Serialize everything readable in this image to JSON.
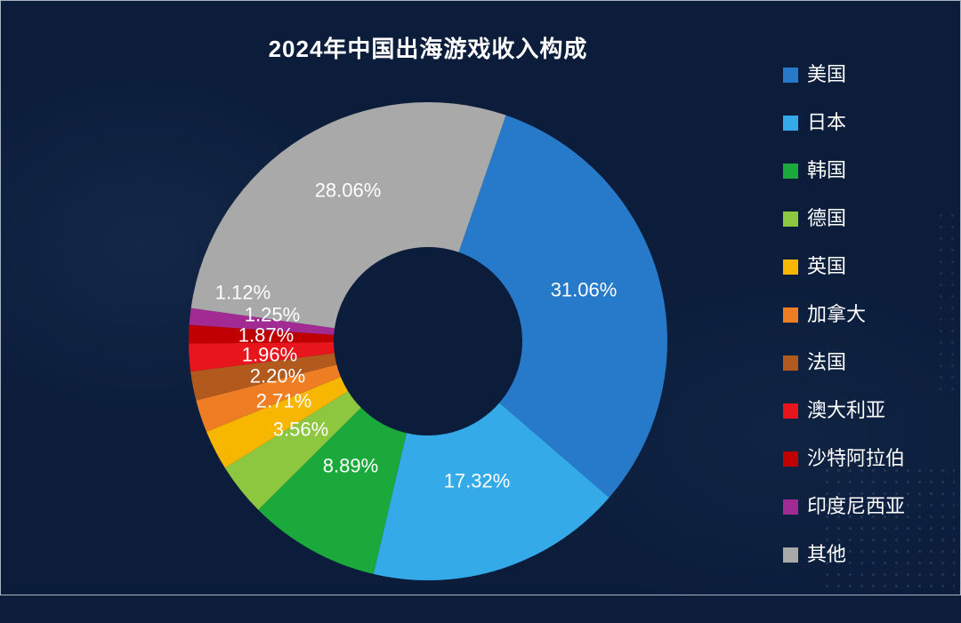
{
  "chart_data": {
    "type": "pie",
    "subtype": "donut",
    "title": "2024年中国出海游戏收入构成",
    "direction": "clockwise",
    "start_angle_deg": 19,
    "legend_position": "right",
    "grid": false,
    "categories": [
      "美国",
      "日本",
      "韩国",
      "德国",
      "英国",
      "加拿大",
      "法国",
      "澳大利亚",
      "沙特阿拉伯",
      "印度尼西亚",
      "其他"
    ],
    "values": [
      31.06,
      17.32,
      8.89,
      3.56,
      2.71,
      2.2,
      1.96,
      1.87,
      1.25,
      1.12,
      28.06
    ],
    "data_labels": [
      "31.06%",
      "17.32%",
      "8.89%",
      "3.56%",
      "2.71%",
      "2.20%",
      "1.96%",
      "1.87%",
      "1.25%",
      "1.12%",
      "28.06%"
    ],
    "colors": [
      "#2779c9",
      "#34aae8",
      "#1ba93c",
      "#8dc63f",
      "#f7b600",
      "#ef7d23",
      "#b25a1d",
      "#e8151c",
      "#c00000",
      "#a12b92",
      "#a9a9a9"
    ],
    "label_color": "#ffffff",
    "background_color": "#0b1d3b"
  }
}
